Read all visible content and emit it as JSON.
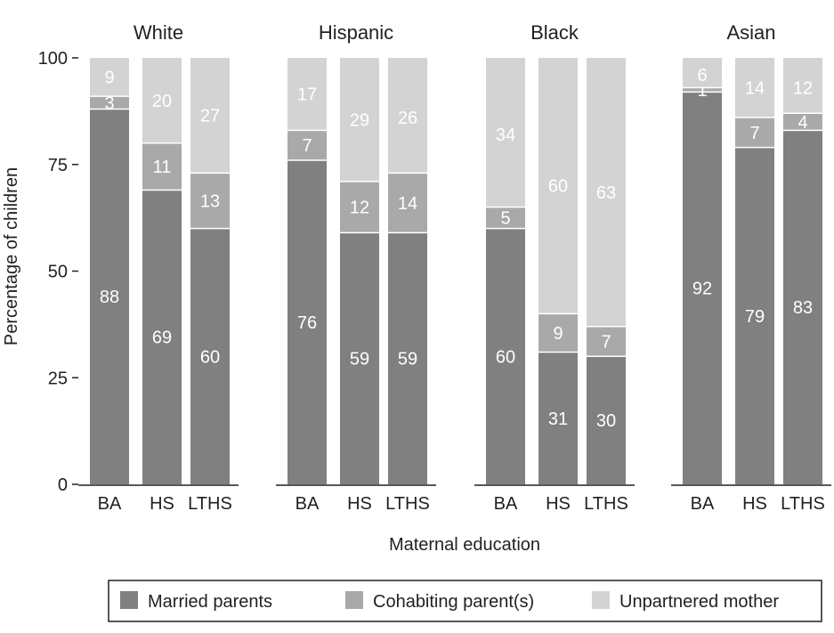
{
  "chart_data": {
    "type": "bar",
    "stacked": true,
    "ylabel": "Percentage of children",
    "xlabel": "Maternal education",
    "ylim": [
      0,
      100
    ],
    "yticks": [
      0,
      25,
      50,
      75,
      100
    ],
    "categories": [
      "BA",
      "HS",
      "LTHS"
    ],
    "colors": {
      "married": "#808080",
      "cohabiting": "#a9a9a9",
      "unpartnered": "#d3d3d3"
    },
    "legend": {
      "position": "bottom",
      "entries": [
        "Married parents",
        "Cohabiting parent(s)",
        "Unpartnered mother"
      ]
    },
    "panels": [
      {
        "title": "White",
        "series": [
          {
            "name": "Married parents",
            "values": [
              88,
              69,
              60
            ]
          },
          {
            "name": "Cohabiting parent(s)",
            "values": [
              3,
              11,
              13
            ]
          },
          {
            "name": "Unpartnered mother",
            "values": [
              9,
              20,
              27
            ]
          }
        ]
      },
      {
        "title": "Hispanic",
        "series": [
          {
            "name": "Married parents",
            "values": [
              76,
              59,
              59
            ]
          },
          {
            "name": "Cohabiting parent(s)",
            "values": [
              7,
              12,
              14
            ]
          },
          {
            "name": "Unpartnered mother",
            "values": [
              17,
              29,
              26
            ]
          }
        ]
      },
      {
        "title": "Black",
        "series": [
          {
            "name": "Married parents",
            "values": [
              60,
              31,
              30
            ]
          },
          {
            "name": "Cohabiting parent(s)",
            "values": [
              5,
              9,
              7
            ]
          },
          {
            "name": "Unpartnered mother",
            "values": [
              34,
              60,
              63
            ]
          }
        ]
      },
      {
        "title": "Asian",
        "series": [
          {
            "name": "Married parents",
            "values": [
              92,
              79,
              83
            ]
          },
          {
            "name": "Cohabiting parent(s)",
            "values": [
              1,
              7,
              4
            ]
          },
          {
            "name": "Unpartnered mother",
            "values": [
              6,
              14,
              12
            ]
          }
        ]
      }
    ]
  }
}
